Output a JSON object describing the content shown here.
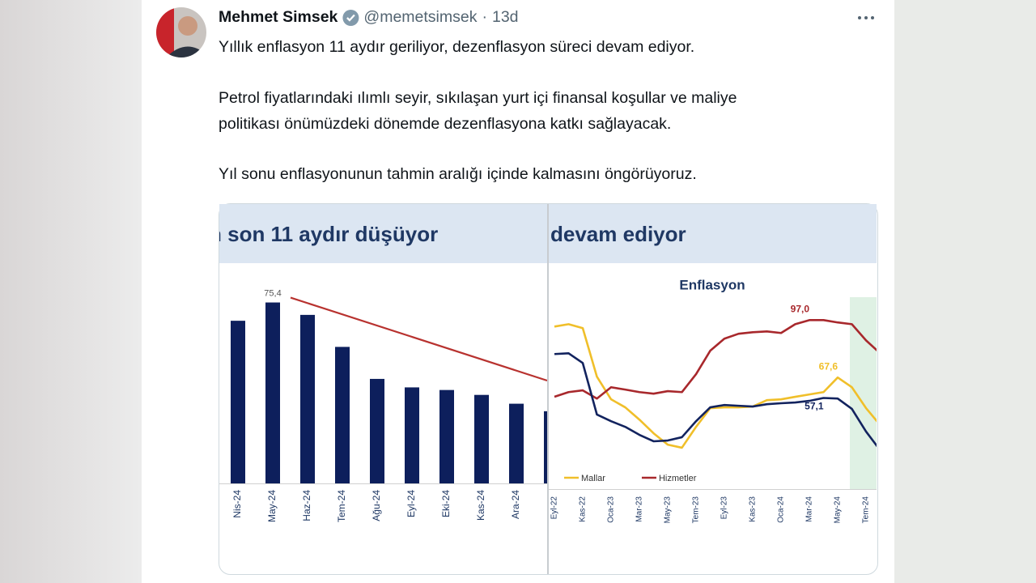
{
  "tweet": {
    "author_name": "Mehmet Simsek",
    "handle": "@memetsimsek",
    "dot": "·",
    "time": "13d",
    "paragraphs": [
      "Yıllık enflasyon 11 aydır geriliyor, dezenflasyon süreci devam ediyor.",
      "Petrol fiyatlarındaki ılımlı seyir, sıkılaşan yurt içi finansal koşullar ve maliye",
      "politikası önümüzdeki dönemde dezenflasyona katkı sağlayacak.",
      "Yıl sonu enflasyonunun tahmin aralığı içinde kalmasını öngörüyoruz."
    ]
  },
  "image": {
    "left_header": "n son 11 aydır düşüyor",
    "right_header": "devam ediyor"
  },
  "chart_data": [
    {
      "type": "bar",
      "categories": [
        "Nis-24",
        "May-24",
        "Haz-24",
        "Tem-24",
        "Ağu-24",
        "Eyl-24",
        "Eki-24",
        "Kas-24",
        "Ara-24",
        null
      ],
      "values": [
        69.8,
        75.4,
        71.6,
        61.8,
        52.0,
        49.4,
        48.6,
        47.1,
        44.4,
        42.1
      ],
      "value_labels": [
        null,
        "75,4",
        null,
        null,
        null,
        null,
        null,
        null,
        null,
        null
      ],
      "color": "#0d1f5c",
      "ylim": [
        20,
        80
      ]
    },
    {
      "type": "line",
      "title": "Enflasyon",
      "categories": [
        "Eyl-22",
        null,
        "Kas-22",
        null,
        "Oca-23",
        null,
        "Mar-23",
        null,
        "May-23",
        null,
        "Tem-23",
        null,
        "Eyl-23",
        null,
        "Kas-23",
        null,
        "Oca-24",
        null,
        "Mar-24",
        null,
        "May-24",
        null,
        "Tem-24",
        null
      ],
      "series": [
        {
          "name": "Mallar",
          "color": "#f0bf2a",
          "values": [
            93.7,
            94.9,
            92.9,
            68,
            56.4,
            52.3,
            46,
            39,
            33.2,
            31.6,
            42.3,
            51.9,
            52.3,
            52.3,
            52.7,
            56,
            56.4,
            57.7,
            58.9,
            60.1,
            67.6,
            62.6,
            51.9,
            43.2
          ],
          "value_labels": [
            null,
            null,
            null,
            null,
            null,
            null,
            null,
            null,
            null,
            null,
            null,
            null,
            null,
            null,
            null,
            null,
            null,
            null,
            null,
            null,
            "67,6",
            null,
            null,
            null
          ]
        },
        {
          "name": "Hizmetler",
          "color": "#a8282c",
          "values": [
            57.7,
            60.1,
            61,
            56.8,
            62.6,
            61.4,
            60.1,
            59.3,
            60.6,
            60.1,
            69.3,
            81.3,
            87.5,
            90,
            90.8,
            91.2,
            90.4,
            94.9,
            97,
            97,
            95.8,
            94.9,
            86.6,
            80
          ],
          "value_labels": [
            null,
            null,
            null,
            null,
            null,
            null,
            null,
            null,
            null,
            null,
            null,
            null,
            null,
            null,
            null,
            null,
            null,
            null,
            "97,0",
            null,
            null,
            null,
            null,
            null
          ]
        },
        {
          "color": "#12235e",
          "values": [
            79.6,
            80,
            75,
            48.6,
            45.2,
            42.3,
            38.2,
            34.9,
            35.3,
            37,
            45.2,
            52.3,
            53.5,
            53.1,
            52.7,
            53.9,
            54.4,
            54.8,
            55.6,
            57.1,
            56.8,
            51.5,
            39.9,
            30.3
          ],
          "value_labels": [
            null,
            null,
            null,
            null,
            null,
            null,
            null,
            null,
            null,
            null,
            null,
            null,
            null,
            null,
            null,
            null,
            null,
            null,
            null,
            "57,1",
            null,
            null,
            null,
            null
          ]
        }
      ],
      "ylim": [
        10,
        110
      ]
    }
  ]
}
